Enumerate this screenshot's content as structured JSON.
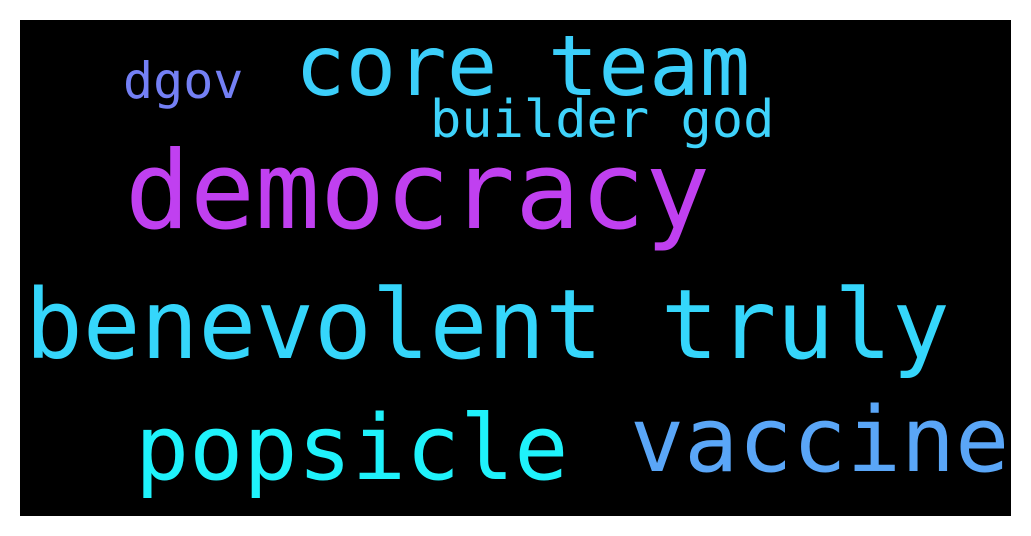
{
  "words": [
    {
      "id": "w-democracy",
      "text": "democracy",
      "color": "#c040f0"
    },
    {
      "id": "w-core-team",
      "text": "core team",
      "color": "#3ccffa"
    },
    {
      "id": "w-dgov",
      "text": "dgov",
      "color": "#7480f5"
    },
    {
      "id": "w-builder",
      "text": "builder god",
      "color": "#3fd3fb"
    },
    {
      "id": "w-benevolent",
      "text": "benevolent truly",
      "color": "#35d6fb"
    },
    {
      "id": "w-popsicle",
      "text": "popsicle",
      "color": "#1ff2fb"
    },
    {
      "id": "w-vaccine",
      "text": "vaccine",
      "color": "#5aa6f7"
    }
  ]
}
